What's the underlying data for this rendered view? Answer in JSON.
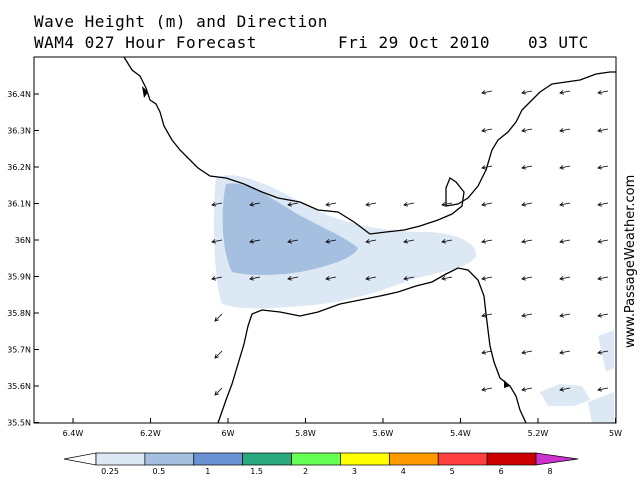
{
  "header": {
    "line1": "Wave Height (m) and Direction",
    "line2": "WAM4 027 Hour Forecast",
    "date": "Fri 29 Oct 2010",
    "time": "03 UTC"
  },
  "map": {
    "lat_labels": [
      "36.4N",
      "36.3N",
      "36.2N",
      "36.1N",
      "36N",
      "35.9N",
      "35.8N",
      "35.7N",
      "35.6N",
      "35.5N"
    ],
    "lon_labels": [
      "6.4W",
      "6.2W",
      "6W",
      "5.8W",
      "5.6W",
      "5.4W",
      "5.2W",
      "5W"
    ],
    "watermark": "www.PassageWeather.com",
    "colors": {
      "land_line": "#000000",
      "wave_0_25": "#dde8f5",
      "wave_0_5": "#a4bfe0"
    }
  },
  "scale": {
    "labels": [
      "0.25",
      "0.5",
      "1",
      "1.5",
      "2",
      "3",
      "4",
      "5",
      "6",
      "8"
    ],
    "colors": [
      "#ffffff",
      "#dde8f5",
      "#a4bfe0",
      "#6a92d4",
      "#2aa87e",
      "#66ff55",
      "#ffff00",
      "#ff9900",
      "#ff4040",
      "#cc0000",
      "#cc33cc"
    ]
  }
}
